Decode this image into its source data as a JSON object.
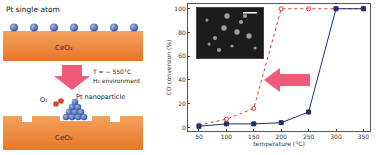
{
  "chart_data": {
    "type": "line",
    "x": [
      50,
      100,
      150,
      200,
      250,
      300,
      350
    ],
    "series": [
      {
        "color": "#e03a2f",
        "values": [
          2,
          7,
          16,
          100,
          100,
          100,
          100
        ],
        "marker": "circle-open",
        "line_style": "dash"
      },
      {
        "color": "#1f2f6e",
        "values": [
          1,
          3,
          3,
          4,
          13,
          100,
          100
        ],
        "marker": "square",
        "line_style": "solid"
      }
    ],
    "x_label": "temperature (°C)",
    "y_label": "CO conversion (%)",
    "xlim": [
      30,
      362
    ],
    "xticks": [
      50,
      100,
      150,
      200,
      250,
      300,
      350
    ],
    "ylim": [
      -3,
      104
    ],
    "yticks": [
      0,
      20,
      40,
      60,
      80,
      100
    ],
    "grid": false
  },
  "diagram": {
    "top_label": "Pt single atom",
    "substrate": "CeO₂",
    "condition_lines": [
      "T = ~ 550°C",
      "H₂ environment"
    ],
    "particle_label": "Pt nanoparticle",
    "gas": "O₂"
  }
}
